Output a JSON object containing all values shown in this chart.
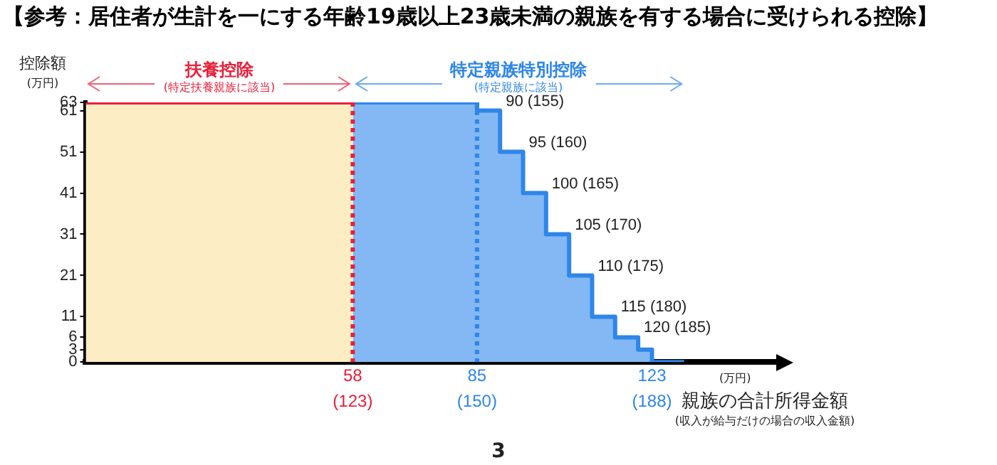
{
  "chart_data": {
    "type": "step",
    "title": "【参考：居住者が生計を一にする年齢19歳以上23歳未満の親族を有する場合に受けられる控除】",
    "ylabel": "控除額\n(万円)",
    "xlabel": "(万円)\n親族の合計所得金額\n(収入が給与だけの場合の収入金額)",
    "xlim": [
      0,
      150
    ],
    "xticks": [
      58,
      85,
      123
    ],
    "ylim": [
      0,
      63
    ],
    "yticks": [
      0,
      3,
      6,
      11,
      21,
      31,
      41,
      51,
      61,
      63
    ],
    "series": [
      {
        "name": "扶養控除\n(特定扶養親族に該当)",
        "type": "area",
        "color": "#fcedc5",
        "x": [
          0,
          58
        ],
        "values": [
          63,
          63
        ]
      },
      {
        "name": "特定親族特別控除\n(特定親族に該当)",
        "type": "area",
        "color": "#84b8f4",
        "x": [
          58,
          85,
          90,
          95,
          100,
          105,
          110,
          115,
          120,
          123,
          130
        ],
        "values": [
          63,
          61,
          51,
          41,
          31,
          21,
          11,
          6,
          3,
          0,
          0
        ]
      }
    ],
    "ref_lines": [
      {
        "axis": "x",
        "value": 58,
        "color": "#e8203a",
        "line_style": "dotted"
      },
      {
        "axis": "x",
        "value": 85,
        "color": "#2e86e8",
        "line_style": "dotted"
      }
    ],
    "annotations": [
      "(123)",
      "(150)",
      "(188)",
      {
        "text": "90 (155)",
        "x": 90,
        "y": 61
      },
      {
        "text": "95 (160)",
        "x": 95,
        "y": 51
      },
      {
        "text": "100 (165)",
        "x": 100,
        "y": 41
      },
      {
        "text": "105 (170)",
        "x": 105,
        "y": 31
      },
      {
        "text": "110 (175)",
        "x": 110,
        "y": 21
      },
      {
        "text": "115 (180)",
        "x": 115,
        "y": 11
      },
      {
        "text": "120 (185)",
        "x": 120,
        "y": 6
      },
      "3"
    ]
  }
}
